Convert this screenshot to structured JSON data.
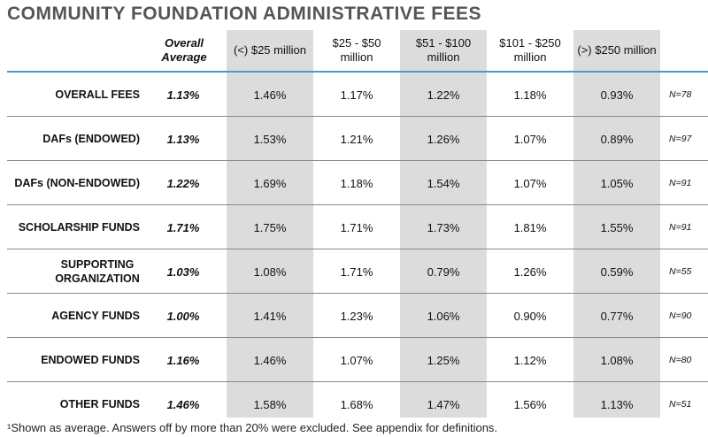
{
  "title": "COMMUNITY FOUNDATION ADMINISTRATIVE FEES",
  "columns": {
    "overall_average": "Overall Average",
    "c1": "(<) $25 million",
    "c2": "$25 - $50 million",
    "c3": "$51 - $100 million",
    "c4": "$101 - $250 million",
    "c5": "(>) $250 million"
  },
  "rows": [
    {
      "label": "OVERALL FEES",
      "avg": "1.13%",
      "v": [
        "1.46%",
        "1.17%",
        "1.22%",
        "1.18%",
        "0.93%"
      ],
      "n": "N=78"
    },
    {
      "label": "DAFs (ENDOWED)",
      "avg": "1.13%",
      "v": [
        "1.53%",
        "1.21%",
        "1.26%",
        "1.07%",
        "0.89%"
      ],
      "n": "N=97"
    },
    {
      "label": "DAFs (NON-ENDOWED)",
      "avg": "1.22%",
      "v": [
        "1.69%",
        "1.18%",
        "1.54%",
        "1.07%",
        "1.05%"
      ],
      "n": "N=91"
    },
    {
      "label": "SCHOLARSHIP FUNDS",
      "avg": "1.71%",
      "v": [
        "1.75%",
        "1.71%",
        "1.73%",
        "1.81%",
        "1.55%"
      ],
      "n": "N=91"
    },
    {
      "label": "SUPPORTING ORGANIZATION",
      "avg": "1.03%",
      "v": [
        "1.08%",
        "1.71%",
        "0.79%",
        "1.26%",
        "0.59%"
      ],
      "n": "N=55"
    },
    {
      "label": "AGENCY FUNDS",
      "avg": "1.00%",
      "v": [
        "1.41%",
        "1.23%",
        "1.06%",
        "0.90%",
        "0.77%"
      ],
      "n": "N=90"
    },
    {
      "label": "ENDOWED FUNDS",
      "avg": "1.16%",
      "v": [
        "1.46%",
        "1.07%",
        "1.25%",
        "1.12%",
        "1.08%"
      ],
      "n": "N=80"
    },
    {
      "label": "OTHER FUNDS",
      "avg": "1.46%",
      "v": [
        "1.58%",
        "1.68%",
        "1.47%",
        "1.56%",
        "1.13%"
      ],
      "n": "N=51"
    }
  ],
  "footnote": "¹Shown as average. Answers off by more than 20% were excluded. See appendix for definitions."
}
